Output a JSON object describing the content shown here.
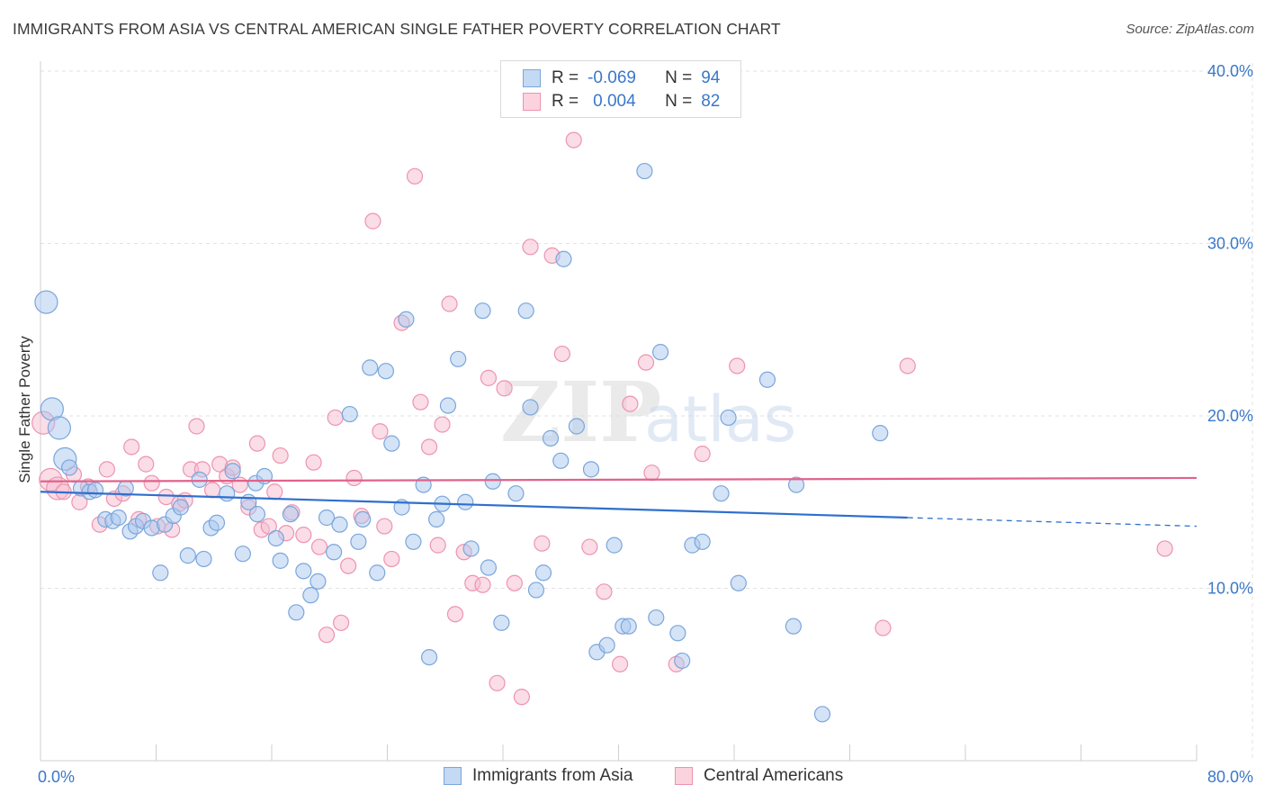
{
  "header": {
    "title": "IMMIGRANTS FROM ASIA VS CENTRAL AMERICAN SINGLE FATHER POVERTY CORRELATION CHART",
    "source": "Source: ZipAtlas.com"
  },
  "watermark": {
    "zip": "ZIP",
    "atlas": "atlas"
  },
  "legend": {
    "rows": [
      {
        "r_label": "R =",
        "r_value": "-0.069",
        "n_label": "N =",
        "n_value": "94"
      },
      {
        "r_label": "R =",
        "r_value": "0.004",
        "n_label": "N =",
        "n_value": "82"
      }
    ]
  },
  "colors": {
    "blue_fill": "#a9c8ee",
    "blue_stroke": "#7aa6dc",
    "blue_line": "#2f6fcf",
    "pink_fill": "#f6bccd",
    "pink_stroke": "#ee93b0",
    "pink_line": "#e0638a",
    "tick_label": "#3a78c9",
    "grid": "#e2e2e2"
  },
  "chart_data": {
    "type": "scatter",
    "title": "IMMIGRANTS FROM ASIA VS CENTRAL AMERICAN SINGLE FATHER POVERTY CORRELATION CHART",
    "xlabel": "",
    "ylabel": "Single Father Poverty",
    "xlim": [
      0,
      80
    ],
    "ylim": [
      0,
      40
    ],
    "x_tick_labels": [
      "0.0%",
      "80.0%"
    ],
    "y_ticks": [
      10,
      20,
      30,
      40
    ],
    "y_tick_labels": [
      "10.0%",
      "20.0%",
      "30.0%",
      "40.0%"
    ],
    "grid": true,
    "legend_position": "bottom-center",
    "series": [
      {
        "name": "Immigrants from Asia",
        "color": "blue",
        "stats": {
          "R": -0.069,
          "N": 94
        },
        "trend": {
          "x": [
            0,
            60,
            80
          ],
          "y": [
            15.6,
            14.1,
            13.6
          ],
          "solid_until": 60
        },
        "points": [
          [
            0.4,
            26.6,
            2
          ],
          [
            0.8,
            20.4,
            2
          ],
          [
            1.3,
            19.3,
            2
          ],
          [
            1.7,
            17.5,
            2
          ],
          [
            2.0,
            17.0,
            1
          ],
          [
            2.8,
            15.8,
            1
          ],
          [
            3.4,
            15.6,
            1
          ],
          [
            3.8,
            15.7,
            1
          ],
          [
            4.5,
            14.0,
            1
          ],
          [
            5.0,
            13.9,
            1
          ],
          [
            5.4,
            14.1,
            1
          ],
          [
            5.9,
            15.8,
            1
          ],
          [
            6.2,
            13.3,
            1
          ],
          [
            6.6,
            13.6,
            1
          ],
          [
            7.1,
            13.9,
            1
          ],
          [
            7.7,
            13.5,
            1
          ],
          [
            8.3,
            10.9,
            1
          ],
          [
            8.6,
            13.7,
            1
          ],
          [
            9.2,
            14.2,
            1
          ],
          [
            9.7,
            14.7,
            1
          ],
          [
            10.2,
            11.9,
            1
          ],
          [
            11.0,
            16.3,
            1
          ],
          [
            11.3,
            11.7,
            1
          ],
          [
            11.8,
            13.5,
            1
          ],
          [
            12.2,
            13.8,
            1
          ],
          [
            12.9,
            15.5,
            1
          ],
          [
            13.3,
            16.8,
            1
          ],
          [
            14.0,
            12.0,
            1
          ],
          [
            14.4,
            15.0,
            1
          ],
          [
            15.0,
            14.3,
            1
          ],
          [
            14.9,
            16.1,
            1
          ],
          [
            15.5,
            16.5,
            1
          ],
          [
            16.3,
            12.9,
            1
          ],
          [
            16.6,
            11.6,
            1
          ],
          [
            17.3,
            14.3,
            1
          ],
          [
            17.7,
            8.6,
            1
          ],
          [
            18.2,
            11.0,
            1
          ],
          [
            18.7,
            9.6,
            1
          ],
          [
            19.2,
            10.4,
            1
          ],
          [
            19.8,
            14.1,
            1
          ],
          [
            20.3,
            12.1,
            1
          ],
          [
            20.7,
            13.7,
            1
          ],
          [
            21.4,
            20.1,
            1
          ],
          [
            22.0,
            12.7,
            1
          ],
          [
            22.3,
            14.0,
            1
          ],
          [
            22.8,
            22.8,
            1
          ],
          [
            23.3,
            10.9,
            1
          ],
          [
            23.9,
            22.6,
            1
          ],
          [
            24.3,
            18.4,
            1
          ],
          [
            25.0,
            14.7,
            1
          ],
          [
            25.3,
            25.6,
            1
          ],
          [
            25.8,
            12.7,
            1
          ],
          [
            26.5,
            16.0,
            1
          ],
          [
            26.9,
            6.0,
            1
          ],
          [
            27.4,
            14.0,
            1
          ],
          [
            27.8,
            14.9,
            1
          ],
          [
            28.2,
            20.6,
            1
          ],
          [
            28.9,
            23.3,
            1
          ],
          [
            29.4,
            15.0,
            1
          ],
          [
            29.8,
            12.3,
            1
          ],
          [
            30.6,
            26.1,
            1
          ],
          [
            31.0,
            11.2,
            1
          ],
          [
            31.3,
            16.2,
            1
          ],
          [
            31.9,
            8.0,
            1
          ],
          [
            32.9,
            15.5,
            1
          ],
          [
            33.6,
            26.1,
            1
          ],
          [
            33.9,
            20.5,
            1
          ],
          [
            34.3,
            9.9,
            1
          ],
          [
            34.8,
            10.9,
            1
          ],
          [
            35.3,
            18.7,
            1
          ],
          [
            36.0,
            17.4,
            1
          ],
          [
            36.2,
            29.1,
            1
          ],
          [
            37.1,
            19.4,
            1
          ],
          [
            38.1,
            16.9,
            1
          ],
          [
            38.5,
            6.3,
            1
          ],
          [
            39.2,
            6.7,
            1
          ],
          [
            39.7,
            12.5,
            1
          ],
          [
            40.3,
            7.8,
            1
          ],
          [
            40.7,
            7.8,
            1
          ],
          [
            41.8,
            34.2,
            1
          ],
          [
            42.6,
            8.3,
            1
          ],
          [
            42.9,
            23.7,
            1
          ],
          [
            44.1,
            7.4,
            1
          ],
          [
            44.4,
            5.8,
            1
          ],
          [
            45.1,
            12.5,
            1
          ],
          [
            45.8,
            12.7,
            1
          ],
          [
            47.1,
            15.5,
            1
          ],
          [
            47.6,
            19.9,
            1
          ],
          [
            48.3,
            10.3,
            1
          ],
          [
            50.3,
            22.1,
            1
          ],
          [
            52.1,
            7.8,
            1
          ],
          [
            52.3,
            16.0,
            1
          ],
          [
            54.1,
            2.7,
            1
          ],
          [
            58.1,
            19.0,
            1
          ]
        ]
      },
      {
        "name": "Central Americans",
        "color": "pink",
        "stats": {
          "R": 0.004,
          "N": 82
        },
        "trend": {
          "x": [
            0,
            80
          ],
          "y": [
            16.2,
            16.4
          ]
        },
        "points": [
          [
            0.2,
            19.6,
            2
          ],
          [
            0.7,
            16.3,
            2
          ],
          [
            1.2,
            15.8,
            2
          ],
          [
            1.6,
            15.6,
            1
          ],
          [
            2.3,
            16.6,
            1
          ],
          [
            2.7,
            15.0,
            1
          ],
          [
            3.3,
            15.9,
            1
          ],
          [
            4.1,
            13.7,
            1
          ],
          [
            4.6,
            16.9,
            1
          ],
          [
            5.1,
            15.2,
            1
          ],
          [
            5.7,
            15.5,
            1
          ],
          [
            6.3,
            18.2,
            1
          ],
          [
            6.8,
            14.0,
            1
          ],
          [
            7.3,
            17.2,
            1
          ],
          [
            7.7,
            16.1,
            1
          ],
          [
            8.1,
            13.6,
            1
          ],
          [
            8.7,
            15.3,
            1
          ],
          [
            9.1,
            13.4,
            1
          ],
          [
            9.6,
            14.9,
            1
          ],
          [
            10.0,
            15.1,
            1
          ],
          [
            10.4,
            16.9,
            1
          ],
          [
            10.8,
            19.4,
            1
          ],
          [
            11.2,
            16.9,
            1
          ],
          [
            11.9,
            15.7,
            1
          ],
          [
            12.4,
            17.2,
            1
          ],
          [
            12.9,
            16.5,
            1
          ],
          [
            13.3,
            17.0,
            1
          ],
          [
            13.8,
            16.0,
            1
          ],
          [
            14.4,
            14.7,
            1
          ],
          [
            15.0,
            18.4,
            1
          ],
          [
            15.3,
            13.4,
            1
          ],
          [
            15.8,
            13.6,
            1
          ],
          [
            16.2,
            15.6,
            1
          ],
          [
            16.6,
            17.7,
            1
          ],
          [
            17.0,
            13.2,
            1
          ],
          [
            17.4,
            14.4,
            1
          ],
          [
            18.2,
            13.1,
            1
          ],
          [
            18.9,
            17.3,
            1
          ],
          [
            19.3,
            12.4,
            1
          ],
          [
            19.8,
            7.3,
            1
          ],
          [
            20.4,
            19.9,
            1
          ],
          [
            20.8,
            8.0,
            1
          ],
          [
            21.3,
            11.3,
            1
          ],
          [
            21.7,
            16.4,
            1
          ],
          [
            22.2,
            14.2,
            1
          ],
          [
            23.0,
            31.3,
            1
          ],
          [
            23.5,
            19.1,
            1
          ],
          [
            23.8,
            13.6,
            1
          ],
          [
            24.3,
            11.7,
            1
          ],
          [
            25.0,
            25.4,
            1
          ],
          [
            25.9,
            33.9,
            1
          ],
          [
            26.3,
            20.8,
            1
          ],
          [
            26.9,
            18.2,
            1
          ],
          [
            27.5,
            12.5,
            1
          ],
          [
            27.8,
            19.5,
            1
          ],
          [
            28.3,
            26.5,
            1
          ],
          [
            28.7,
            8.5,
            1
          ],
          [
            29.3,
            12.1,
            1
          ],
          [
            29.9,
            10.3,
            1
          ],
          [
            30.6,
            10.2,
            1
          ],
          [
            31.0,
            22.2,
            1
          ],
          [
            31.6,
            4.5,
            1
          ],
          [
            32.1,
            21.6,
            1
          ],
          [
            32.8,
            10.3,
            1
          ],
          [
            33.3,
            3.7,
            1
          ],
          [
            33.9,
            29.8,
            1
          ],
          [
            34.7,
            12.6,
            1
          ],
          [
            35.4,
            29.3,
            1
          ],
          [
            36.1,
            23.6,
            1
          ],
          [
            36.9,
            36.0,
            1
          ],
          [
            38.0,
            12.4,
            1
          ],
          [
            39.0,
            9.8,
            1
          ],
          [
            40.1,
            5.6,
            1
          ],
          [
            40.8,
            20.7,
            1
          ],
          [
            41.9,
            23.1,
            1
          ],
          [
            42.3,
            16.7,
            1
          ],
          [
            44.0,
            5.6,
            1
          ],
          [
            45.8,
            17.8,
            1
          ],
          [
            48.2,
            22.9,
            1
          ],
          [
            58.3,
            7.7,
            1
          ],
          [
            60.0,
            22.9,
            1
          ],
          [
            77.8,
            12.3,
            1
          ]
        ]
      }
    ]
  }
}
